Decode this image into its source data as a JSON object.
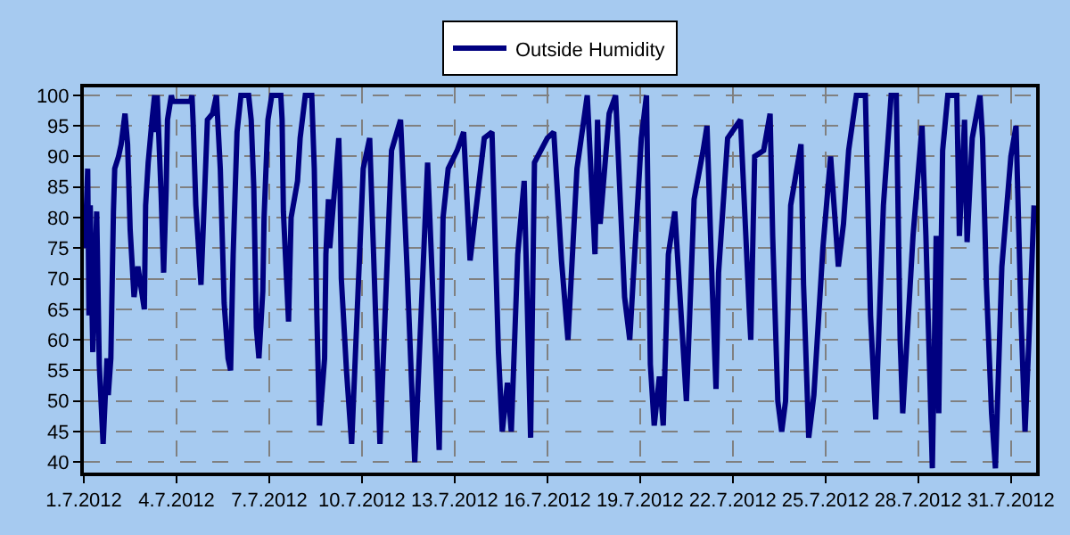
{
  "chart_data": {
    "type": "line",
    "legend": "top",
    "grid": true,
    "marker": "none",
    "line_style": "solid",
    "xlim": [
      "2012-07-01T00:00",
      "2012-07-31T19:36"
    ],
    "xticks": [
      {
        "value": "2012-07-01",
        "label": "1.7.2012"
      },
      {
        "value": "2012-07-04",
        "label": "4.7.2012"
      },
      {
        "value": "2012-07-07",
        "label": "7.7.2012"
      },
      {
        "value": "2012-07-10",
        "label": "10.7.2012"
      },
      {
        "value": "2012-07-13",
        "label": "13.7.2012"
      },
      {
        "value": "2012-07-16",
        "label": "16.7.2012"
      },
      {
        "value": "2012-07-19",
        "label": "19.7.2012"
      },
      {
        "value": "2012-07-22",
        "label": "22.7.2012"
      },
      {
        "value": "2012-07-25",
        "label": "25.7.2012"
      },
      {
        "value": "2012-07-28",
        "label": "28.7.2012"
      },
      {
        "value": "2012-07-31",
        "label": "31.7.2012"
      }
    ],
    "ylim": [
      38.3,
      101.3
    ],
    "yticks": [
      40,
      45,
      50,
      55,
      60,
      65,
      70,
      75,
      80,
      85,
      90,
      95,
      100
    ],
    "x": [
      "2012-07-01T01:00",
      "2012-07-01T03:00",
      "2012-07-01T04:00",
      "2012-07-01T05:00",
      "2012-07-01T07:00",
      "2012-07-01T10:00",
      "2012-07-01T12:00",
      "2012-07-01T15:00",
      "2012-07-01T18:00",
      "2012-07-01T19:00",
      "2012-07-01T21:00",
      "2012-07-01T23:00",
      "2012-07-02T00:00",
      "2012-07-02T03:00",
      "2012-07-02T05:00",
      "2012-07-02T08:00",
      "2012-07-02T10:00",
      "2012-07-02T12:00",
      "2012-07-02T15:00",
      "2012-07-02T18:00",
      "2012-07-02T23:00",
      "2012-07-03T00:00",
      "2012-07-03T02:00",
      "2012-07-03T05:00",
      "2012-07-03T07:00",
      "2012-07-03T08:00",
      "2012-07-03T09:00",
      "2012-07-03T12:00",
      "2012-07-03T14:00",
      "2012-07-03T16:00",
      "2012-07-03T17:00",
      "2012-07-03T20:00",
      "2012-07-03T21:00",
      "2012-07-04T11:00",
      "2012-07-04T12:00",
      "2012-07-04T13:00",
      "2012-07-04T15:00",
      "2012-07-04T19:00",
      "2012-07-04T22:00",
      "2012-07-05T00:00",
      "2012-07-05T04:00",
      "2012-07-05T07:00",
      "2012-07-05T10:00",
      "2012-07-05T13:00",
      "2012-07-05T16:00",
      "2012-07-05T18:00",
      "2012-07-05T20:00",
      "2012-07-05T23:00",
      "2012-07-06T02:00",
      "2012-07-06T08:00",
      "2012-07-06T10:00",
      "2012-07-06T12:00",
      "2012-07-06T14:00",
      "2012-07-06T16:00",
      "2012-07-06T19:00",
      "2012-07-06T20:00",
      "2012-07-06T23:00",
      "2012-07-07T02:00",
      "2012-07-07T09:00",
      "2012-07-07T10:00",
      "2012-07-07T11:00",
      "2012-07-07T15:00",
      "2012-07-07T17:00",
      "2012-07-07T22:00",
      "2012-07-08T00:00",
      "2012-07-08T04:00",
      "2012-07-08T09:00",
      "2012-07-08T11:00",
      "2012-07-08T13:00",
      "2012-07-08T15:00",
      "2012-07-08T19:00",
      "2012-07-08T20:00",
      "2012-07-08T22:00",
      "2012-07-08T23:00",
      "2012-07-09T06:00",
      "2012-07-09T07:00",
      "2012-07-09T08:00",
      "2012-07-09T12:00",
      "2012-07-09T16:00",
      "2012-07-10T01:00",
      "2012-07-10T06:00",
      "2012-07-10T14:00",
      "2012-07-10T23:00",
      "2012-07-11T06:00",
      "2012-07-11T11:00",
      "2012-07-11T17:00",
      "2012-07-12T03:00",
      "2012-07-12T12:00",
      "2012-07-12T15:00",
      "2012-07-12T19:00",
      "2012-07-13T02:00",
      "2012-07-13T07:00",
      "2012-07-13T12:00",
      "2012-07-13T23:00",
      "2012-07-14T05:00",
      "2012-07-14T10:00",
      "2012-07-14T13:00",
      "2012-07-14T17:00",
      "2012-07-14T20:00",
      "2012-07-15T01:00",
      "2012-07-15T06:00",
      "2012-07-15T11:00",
      "2012-07-15T14:00",
      "2012-07-16T00:00",
      "2012-07-16T05:00",
      "2012-07-16T11:00",
      "2012-07-16T16:00",
      "2012-07-16T23:00",
      "2012-07-17T07:00",
      "2012-07-17T13:00",
      "2012-07-17T15:00",
      "2012-07-17T17:00",
      "2012-07-18T00:00",
      "2012-07-18T05:00",
      "2012-07-18T12:00",
      "2012-07-18T16:00",
      "2012-07-19T01:00",
      "2012-07-19T05:00",
      "2012-07-19T08:00",
      "2012-07-19T11:00",
      "2012-07-19T15:00",
      "2012-07-19T18:00",
      "2012-07-19T22:00",
      "2012-07-20T03:00",
      "2012-07-20T12:00",
      "2012-07-20T18:00",
      "2012-07-21T01:00",
      "2012-07-21T04:00",
      "2012-07-21T08:00",
      "2012-07-21T11:00",
      "2012-07-21T13:00",
      "2012-07-21T20:00",
      "2012-07-22T06:00",
      "2012-07-22T13:00",
      "2012-07-22T14:00",
      "2012-07-22T17:00",
      "2012-07-23T00:00",
      "2012-07-23T05:00",
      "2012-07-23T07:00",
      "2012-07-23T11:00",
      "2012-07-23T14:00",
      "2012-07-23T17:00",
      "2012-07-23T21:00",
      "2012-07-24T05:00",
      "2012-07-24T07:00",
      "2012-07-24T11:00",
      "2012-07-24T15:00",
      "2012-07-24T22:00",
      "2012-07-25T04:00",
      "2012-07-25T10:00",
      "2012-07-25T14:00",
      "2012-07-25T18:00",
      "2012-07-26T00:00",
      "2012-07-26T07:00",
      "2012-07-26T11:00",
      "2012-07-26T15:00",
      "2012-07-26T21:00",
      "2012-07-27T03:00",
      "2012-07-27T07:00",
      "2012-07-27T10:00",
      "2012-07-27T12:00",
      "2012-07-27T20:00",
      "2012-07-28T03:00",
      "2012-07-28T06:00",
      "2012-07-28T11:00",
      "2012-07-28T14:00",
      "2012-07-28T16:00",
      "2012-07-28T19:00",
      "2012-07-28T23:00",
      "2012-07-29T06:00",
      "2012-07-29T08:00",
      "2012-07-29T12:00",
      "2012-07-29T14:00",
      "2012-07-29T18:00",
      "2012-07-30T00:00",
      "2012-07-30T02:00",
      "2012-07-30T05:00",
      "2012-07-30T09:00",
      "2012-07-30T12:00",
      "2012-07-30T17:00",
      "2012-07-31T00:00",
      "2012-07-31T04:00",
      "2012-07-31T08:00",
      "2012-07-31T11:00",
      "2012-07-31T14:00",
      "2012-07-31T18:00"
    ],
    "series": [
      {
        "name": "Outside Humidity",
        "color": "#000080",
        "values": [
          75,
          88,
          64,
          82,
          58,
          81,
          56,
          43,
          57,
          51,
          57,
          81,
          88,
          90,
          92,
          97,
          92,
          78,
          67,
          72,
          65,
          82,
          89,
          96,
          100,
          94,
          100,
          84,
          71,
          85,
          96,
          100,
          99,
          99,
          100,
          95,
          82,
          69,
          85,
          96,
          97,
          100,
          88,
          66,
          57,
          55,
          74,
          94,
          100,
          100,
          96,
          85,
          62,
          57,
          68,
          80,
          96,
          100,
          100,
          96,
          81,
          63,
          80,
          86,
          93,
          100,
          100,
          88,
          64,
          46,
          57,
          74,
          83,
          75,
          93,
          85,
          70,
          55,
          43,
          88,
          93,
          43,
          91,
          96,
          72,
          40,
          89,
          42,
          80,
          88,
          91,
          94,
          73,
          93,
          94,
          58,
          45,
          53,
          45,
          74,
          86,
          44,
          89,
          93,
          94,
          73,
          60,
          88,
          100,
          74,
          96,
          79,
          97,
          100,
          67,
          60,
          93,
          100,
          56,
          46,
          54,
          46,
          74,
          81,
          50,
          83,
          91,
          95,
          69,
          52,
          71,
          93,
          96,
          64,
          60,
          90,
          91,
          97,
          77,
          50,
          45,
          50,
          82,
          92,
          69,
          44,
          51,
          75,
          90,
          72,
          79,
          91,
          100,
          100,
          64,
          47,
          82,
          100,
          100,
          60,
          48,
          77,
          95,
          77,
          39,
          77,
          48,
          91,
          100,
          100,
          77,
          96,
          76,
          93,
          100,
          93,
          69,
          48,
          39,
          72,
          90,
          95,
          63,
          45,
          60,
          82
        ]
      }
    ]
  }
}
